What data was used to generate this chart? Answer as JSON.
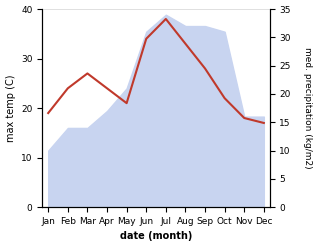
{
  "months": [
    "Jan",
    "Feb",
    "Mar",
    "Apr",
    "May",
    "Jun",
    "Jul",
    "Aug",
    "Sep",
    "Oct",
    "Nov",
    "Dec"
  ],
  "temperature": [
    19,
    24,
    27,
    24,
    21,
    34,
    38,
    33,
    28,
    22,
    18,
    17
  ],
  "precipitation": [
    10,
    14,
    14,
    17,
    21,
    31,
    34,
    32,
    32,
    31,
    16,
    16
  ],
  "temp_color": "#c0392b",
  "precip_color": "#c8d4f0",
  "background_color": "#ffffff",
  "xlabel": "date (month)",
  "ylabel_left": "max temp (C)",
  "ylabel_right": "med. precipitation (kg/m2)",
  "ylim_left": [
    0,
    40
  ],
  "ylim_right": [
    0,
    35
  ],
  "yticks_left": [
    0,
    10,
    20,
    30,
    40
  ],
  "yticks_right": [
    0,
    5,
    10,
    15,
    20,
    25,
    30,
    35
  ]
}
